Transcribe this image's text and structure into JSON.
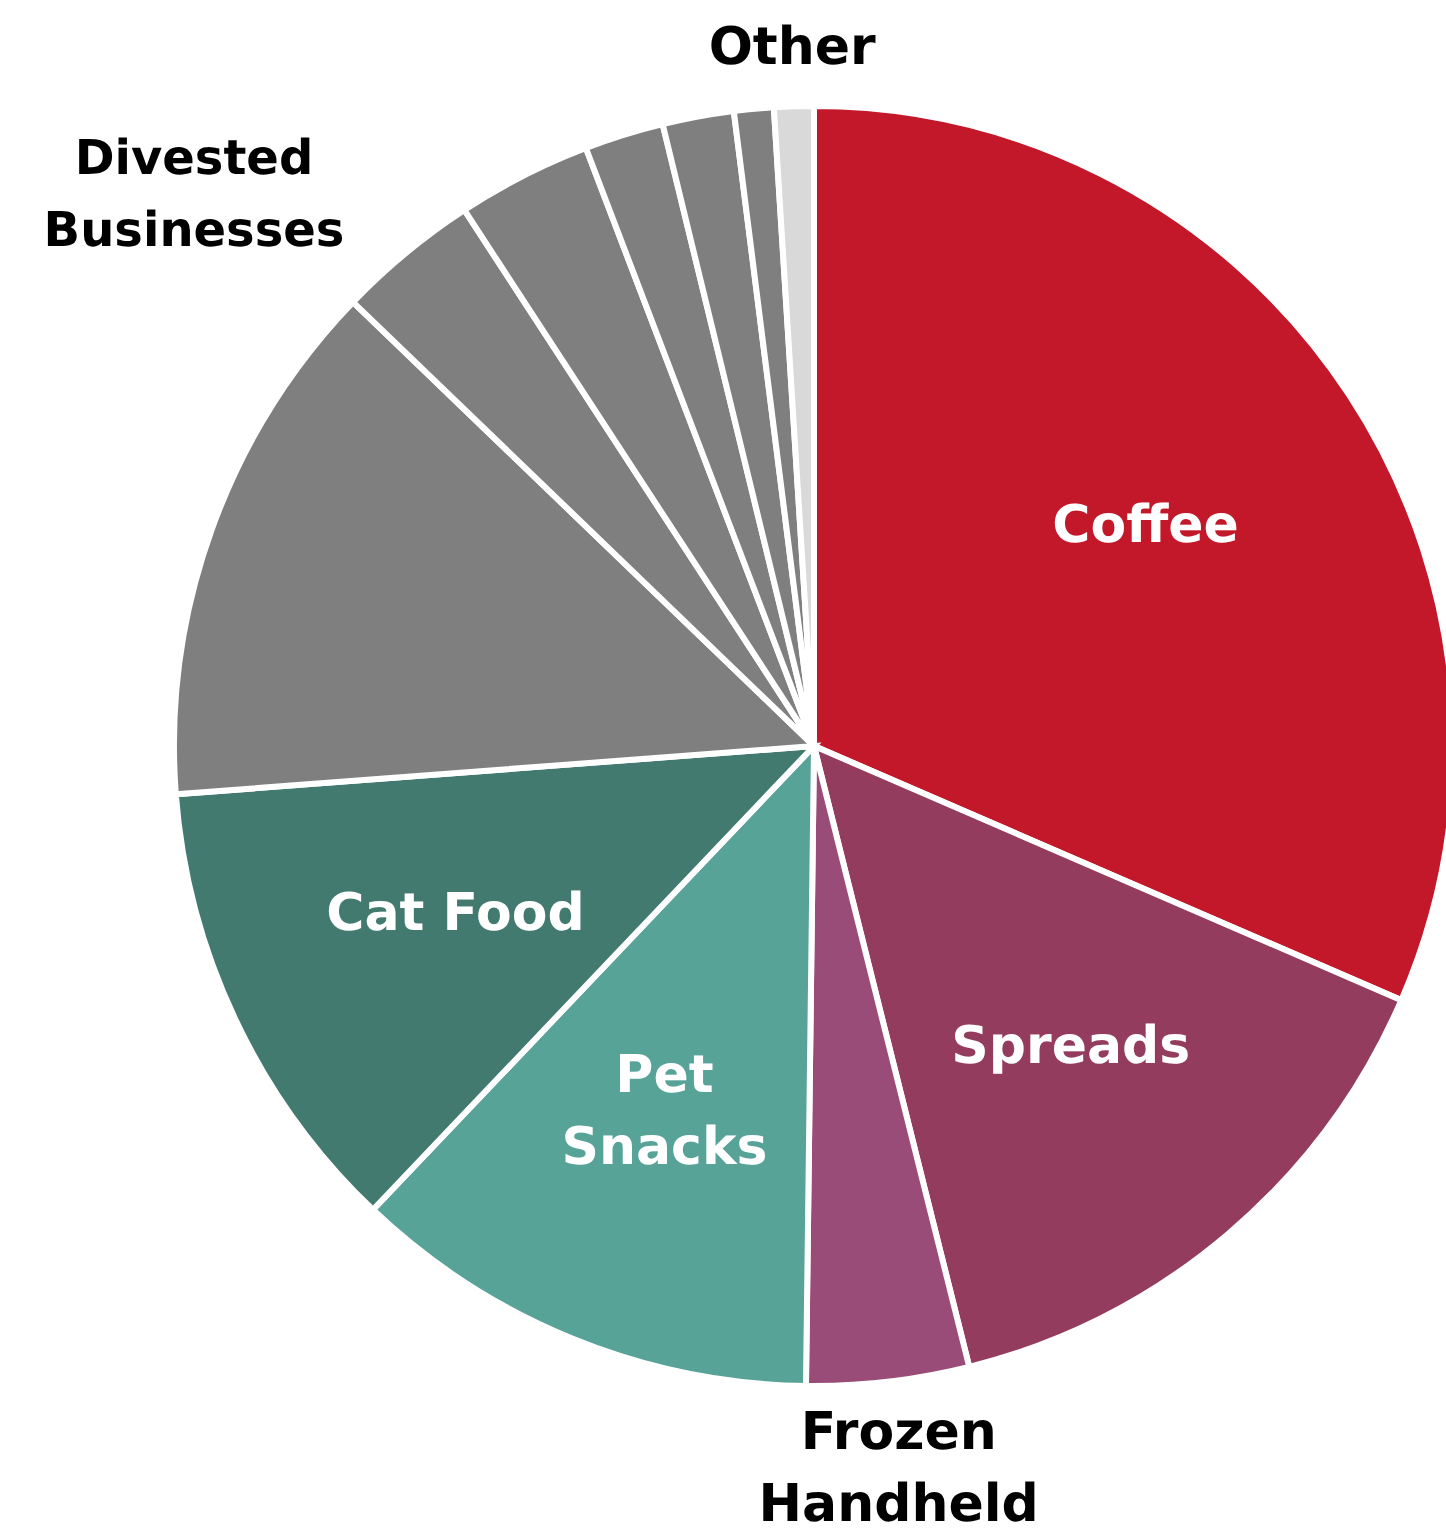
{
  "chart_data": {
    "type": "pie",
    "categories": [
      "Coffee",
      "Spreads",
      "Frozen Handheld",
      "Pet Snacks",
      "Cat Food",
      null,
      null,
      null,
      null,
      null,
      null,
      "Other"
    ],
    "values": [
      31.5,
      14.6,
      4.1,
      11.9,
      11.7,
      13.4,
      3.6,
      3.4,
      2.0,
      1.8,
      1.0,
      1.0
    ],
    "colors": [
      "#c3172a",
      "#933c5e",
      "#9a4c78",
      "#57a398",
      "#437a70",
      "#7f7f7f",
      "#7f7f7f",
      "#7f7f7f",
      "#7f7f7f",
      "#7f7f7f",
      "#7f7f7f",
      "#d9d9d9"
    ],
    "annotations": [
      "Divested Businesses"
    ]
  }
}
